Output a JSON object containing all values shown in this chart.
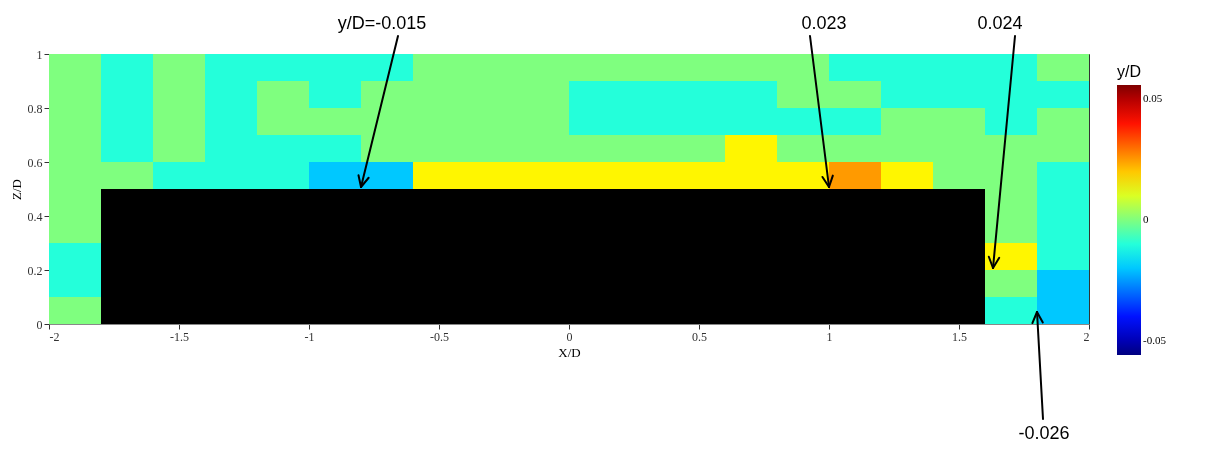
{
  "chart_data": {
    "type": "heatmap",
    "xlabel": "X/D",
    "ylabel": "Z/D",
    "clabel": "y/D",
    "x": [
      -1.9,
      -1.7,
      -1.5,
      -1.3,
      -1.1,
      -0.9,
      -0.7,
      -0.5,
      -0.3,
      -0.1,
      0.1,
      0.3,
      0.5,
      0.7,
      0.9,
      1.1,
      1.3,
      1.5,
      1.7,
      1.9
    ],
    "y": [
      0.95,
      0.85,
      0.75,
      0.65,
      0.55,
      0.45,
      0.35,
      0.25,
      0.15,
      0.05
    ],
    "xlim": [
      -2,
      2
    ],
    "xticks": [
      -2,
      -1.5,
      -1,
      -0.5,
      0,
      0.5,
      1,
      1.5,
      2
    ],
    "ylim": [
      0,
      1
    ],
    "yticks": [
      0,
      0.2,
      0.4,
      0.6,
      0.8,
      1
    ],
    "clim": [
      -0.056,
      0.056
    ],
    "cticks": [
      -0.05,
      0,
      0.05
    ],
    "cells": [
      [
        0,
        -0.01,
        0,
        -0.01,
        -0.01,
        -0.01,
        -0.01,
        0,
        0,
        0,
        0,
        0,
        0,
        0,
        0,
        -0.01,
        -0.01,
        -0.01,
        -0.01,
        0
      ],
      [
        0,
        -0.01,
        0,
        -0.01,
        0,
        -0.01,
        0,
        0,
        0,
        0,
        -0.01,
        -0.01,
        -0.01,
        -0.01,
        0,
        0,
        -0.01,
        -0.01,
        -0.01,
        -0.01
      ],
      [
        0,
        -0.01,
        0,
        -0.01,
        0,
        0,
        0,
        0,
        0,
        0,
        -0.01,
        -0.01,
        -0.01,
        -0.01,
        -0.01,
        -0.01,
        0,
        0,
        -0.01,
        0
      ],
      [
        0,
        -0.01,
        0,
        -0.01,
        -0.01,
        -0.01,
        0,
        0,
        0,
        0,
        0,
        0,
        0,
        0.015,
        0,
        0,
        0,
        0,
        0,
        0
      ],
      [
        0,
        0,
        -0.01,
        -0.01,
        -0.01,
        -0.02,
        -0.02,
        0.015,
        0.015,
        0.015,
        0.015,
        0.015,
        0.015,
        0.015,
        0.015,
        0.025,
        0.015,
        0,
        0,
        -0.01
      ],
      [
        0,
        null,
        null,
        null,
        null,
        null,
        null,
        null,
        null,
        null,
        null,
        null,
        null,
        null,
        null,
        null,
        null,
        null,
        0,
        -0.01
      ],
      [
        0,
        null,
        null,
        null,
        null,
        null,
        null,
        null,
        null,
        null,
        null,
        null,
        null,
        null,
        null,
        null,
        null,
        null,
        0,
        -0.01
      ],
      [
        -0.01,
        null,
        null,
        null,
        null,
        null,
        null,
        null,
        null,
        null,
        null,
        null,
        null,
        null,
        null,
        null,
        null,
        null,
        0.015,
        -0.01
      ],
      [
        -0.01,
        null,
        null,
        null,
        null,
        null,
        null,
        null,
        null,
        null,
        null,
        null,
        null,
        null,
        null,
        null,
        null,
        null,
        0,
        -0.02
      ],
      [
        0,
        null,
        null,
        null,
        null,
        null,
        null,
        null,
        null,
        null,
        null,
        null,
        null,
        null,
        null,
        null,
        null,
        null,
        -0.01,
        -0.02
      ]
    ],
    "annotations": [
      "y/D=-0.015",
      "0.023",
      "0.024",
      "-0.026"
    ]
  }
}
